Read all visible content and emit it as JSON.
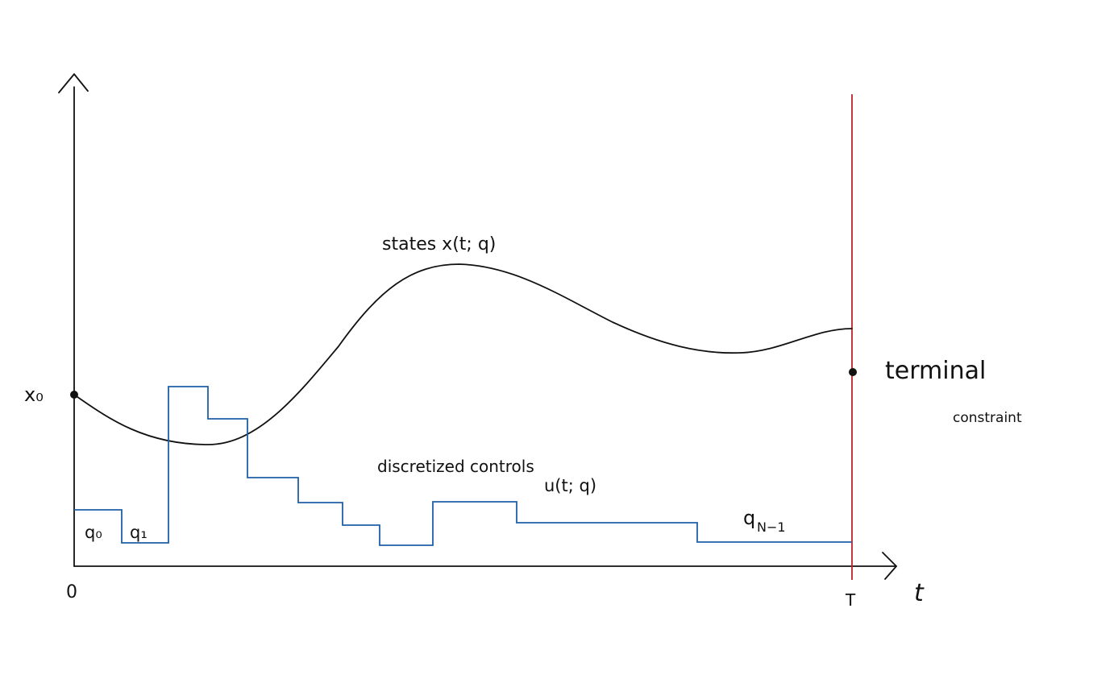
{
  "labels": {
    "x0": "x₀",
    "origin": "0",
    "t_axis": "t",
    "terminal_time": "T",
    "states": "states x(t; q)",
    "controls_line1": "discretized controls",
    "controls_line2": "u(t; q)",
    "terminal_line1": "terminal",
    "terminal_line2": "constraint",
    "q0": "q₀",
    "q1": "q₁",
    "qN1": "q",
    "qN1_sub": "N−1"
  },
  "colors": {
    "axis": "#111111",
    "state_curve": "#111111",
    "controls": "#1f5fa8",
    "terminal_constraint": "#c0202a"
  }
}
